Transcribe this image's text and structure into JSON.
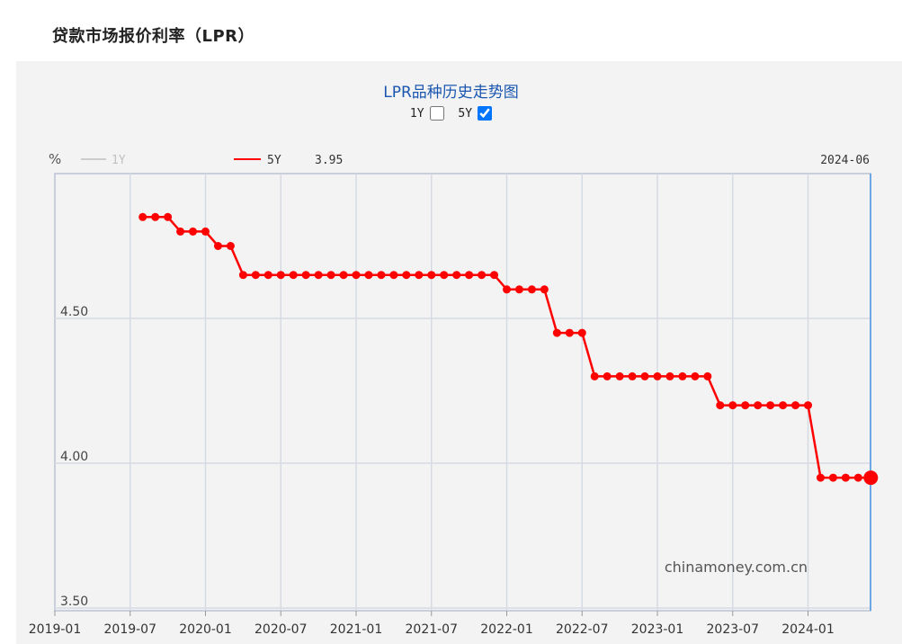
{
  "page": {
    "heading": "贷款市场报价利率（LPR）"
  },
  "chart_header": {
    "title": "LPR品种历史走势图",
    "toggle_1y_label": "1Y",
    "toggle_5y_label": "5Y",
    "toggle_1y_checked": false,
    "toggle_5y_checked": true
  },
  "chart_data": {
    "type": "line",
    "unit_label": "%",
    "legend": [
      {
        "name": "1Y",
        "active": false,
        "color": "#cccccc"
      },
      {
        "name": "5Y",
        "active": true,
        "color": "#ff0000"
      }
    ],
    "current_value_label": "3.95",
    "current_date_label": "2024-06",
    "watermark": "chinamoney.com.cn",
    "ylim": [
      3.5,
      5.0
    ],
    "y_ticks": [
      "3.50",
      "4.00",
      "4.50"
    ],
    "x_ticks": [
      "2019-01",
      "2019-07",
      "2020-01",
      "2020-07",
      "2021-01",
      "2021-07",
      "2022-01",
      "2022-07",
      "2023-01",
      "2023-07",
      "2024-01"
    ],
    "series": [
      {
        "name": "5Y",
        "color": "#ff0000",
        "x": [
          "2019-08",
          "2019-09",
          "2019-10",
          "2019-11",
          "2019-12",
          "2020-01",
          "2020-02",
          "2020-03",
          "2020-04",
          "2020-05",
          "2020-06",
          "2020-07",
          "2020-08",
          "2020-09",
          "2020-10",
          "2020-11",
          "2020-12",
          "2021-01",
          "2021-02",
          "2021-03",
          "2021-04",
          "2021-05",
          "2021-06",
          "2021-07",
          "2021-08",
          "2021-09",
          "2021-10",
          "2021-11",
          "2021-12",
          "2022-01",
          "2022-02",
          "2022-03",
          "2022-04",
          "2022-05",
          "2022-06",
          "2022-07",
          "2022-08",
          "2022-09",
          "2022-10",
          "2022-11",
          "2022-12",
          "2023-01",
          "2023-02",
          "2023-03",
          "2023-04",
          "2023-05",
          "2023-06",
          "2023-07",
          "2023-08",
          "2023-09",
          "2023-10",
          "2023-11",
          "2023-12",
          "2024-01",
          "2024-02",
          "2024-03",
          "2024-04",
          "2024-05",
          "2024-06"
        ],
        "values": [
          4.85,
          4.85,
          4.85,
          4.8,
          4.8,
          4.8,
          4.75,
          4.75,
          4.65,
          4.65,
          4.65,
          4.65,
          4.65,
          4.65,
          4.65,
          4.65,
          4.65,
          4.65,
          4.65,
          4.65,
          4.65,
          4.65,
          4.65,
          4.65,
          4.65,
          4.65,
          4.65,
          4.65,
          4.65,
          4.6,
          4.6,
          4.6,
          4.6,
          4.45,
          4.45,
          4.45,
          4.3,
          4.3,
          4.3,
          4.3,
          4.3,
          4.3,
          4.3,
          4.3,
          4.3,
          4.3,
          4.2,
          4.2,
          4.2,
          4.2,
          4.2,
          4.2,
          4.2,
          4.2,
          3.95,
          3.95,
          3.95,
          3.95,
          3.95
        ]
      }
    ]
  }
}
